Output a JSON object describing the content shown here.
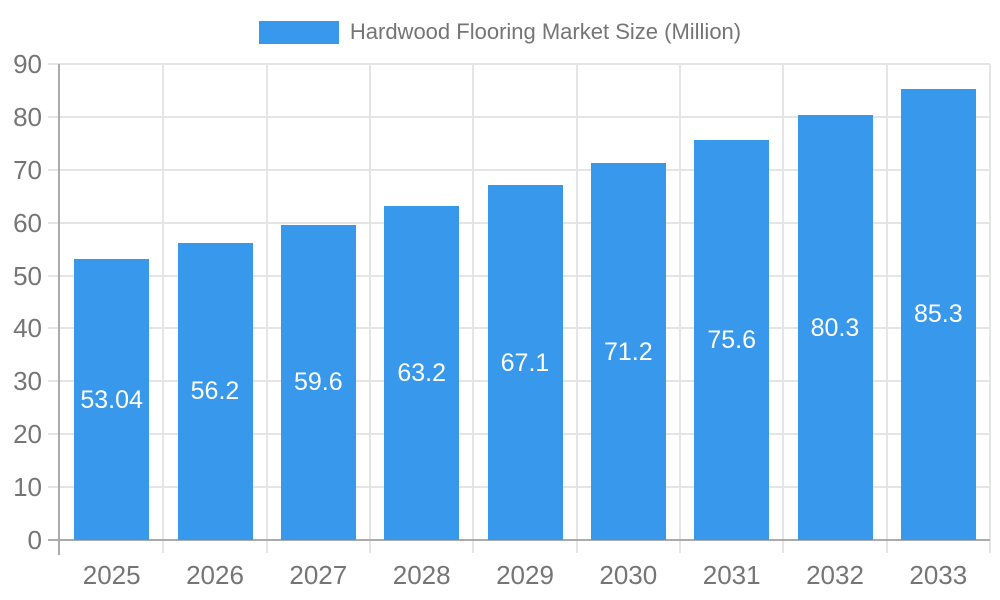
{
  "chart_data": {
    "type": "bar",
    "title": "Hardwood Flooring Market Size (Million)",
    "categories": [
      "2025",
      "2026",
      "2027",
      "2028",
      "2029",
      "2030",
      "2031",
      "2032",
      "2033"
    ],
    "values": [
      53.04,
      56.2,
      59.6,
      63.2,
      67.1,
      71.2,
      75.6,
      80.3,
      85.3
    ],
    "value_labels": [
      "53.04",
      "56.2",
      "59.6",
      "63.2",
      "67.1",
      "71.2",
      "75.6",
      "80.3",
      "85.3"
    ],
    "xlabel": "",
    "ylabel": "",
    "ylim": [
      0,
      90
    ],
    "yticks": [
      0,
      10,
      20,
      30,
      40,
      50,
      60,
      70,
      80,
      90
    ],
    "grid": true,
    "legend_position": "top",
    "value_label_position": "center-of-bar",
    "colors": {
      "bar": "#3899EC",
      "value_label": "#ffffff",
      "axis_text": "#757575",
      "legend_text": "#757575",
      "gridline": "#E5E5E5",
      "axis_line": "#ABABAB",
      "background": "#ffffff"
    }
  }
}
